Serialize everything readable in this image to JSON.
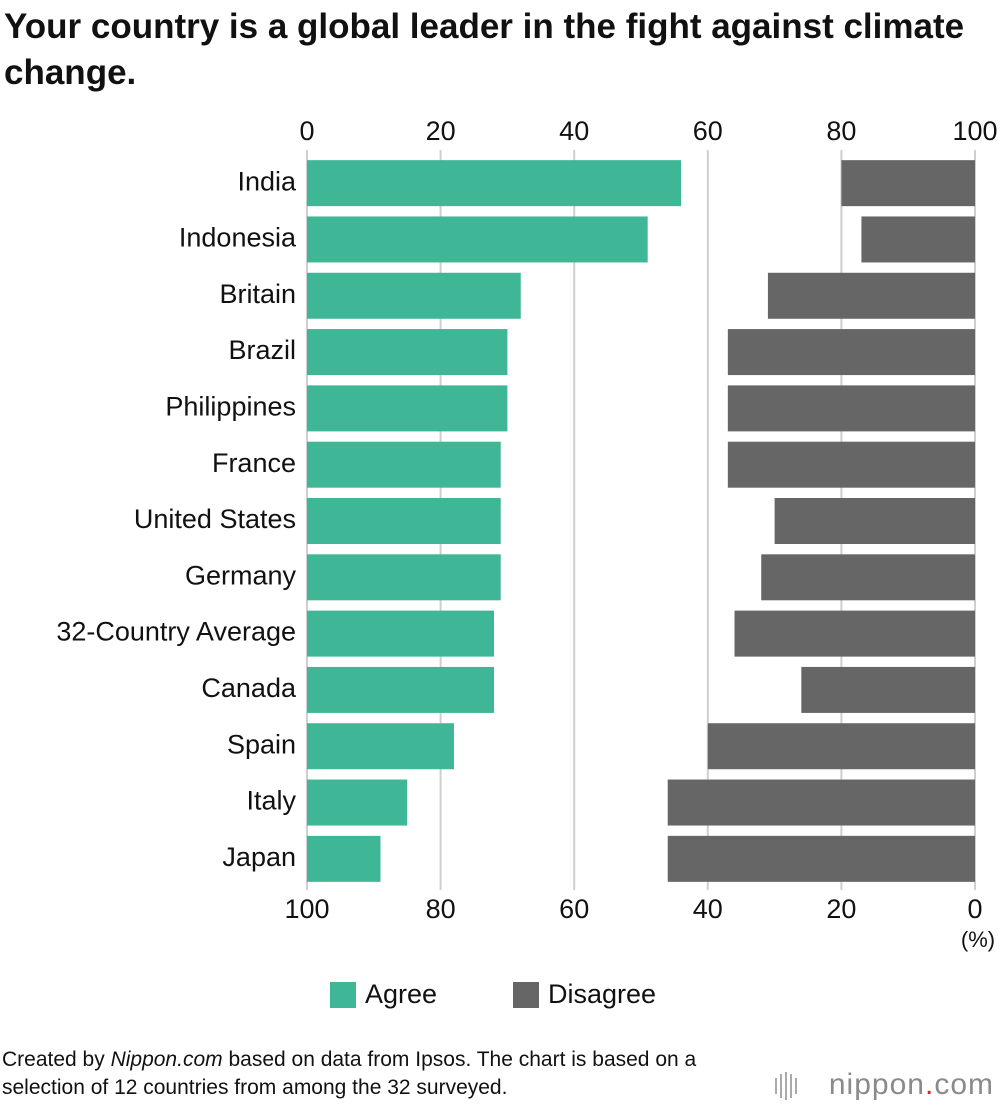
{
  "chart_data": {
    "type": "diverging_bar",
    "title": "Your country is a global leader in the fight against climate change.",
    "categories": [
      "India",
      "Indonesia",
      "Britain",
      "Brazil",
      "Philippines",
      "France",
      "United States",
      "Germany",
      "32-Country Average",
      "Canada",
      "Spain",
      "Italy",
      "Japan"
    ],
    "series": [
      {
        "name": "Agree",
        "color": "#3fb696",
        "axis": "x",
        "values": [
          56,
          51,
          32,
          30,
          30,
          29,
          29,
          29,
          28,
          28,
          22,
          15,
          11
        ]
      },
      {
        "name": "Disagree",
        "color": "#666666",
        "axis": "x2",
        "values": [
          20,
          17,
          31,
          37,
          37,
          37,
          30,
          32,
          36,
          26,
          40,
          46,
          46
        ]
      }
    ],
    "xlim": [
      0,
      100
    ],
    "xticks": [
      0,
      20,
      40,
      60,
      80,
      100
    ],
    "x2lim": [
      100,
      0
    ],
    "x2ticks": [
      100,
      80,
      60,
      40,
      20,
      0
    ],
    "unit_label": "(%)",
    "grid": true,
    "legend": "bottom",
    "note": [
      "Created by ",
      "Nippon.com",
      " based on data from Ipsos. The chart is based on a selection of 12 countries from among the 32 surveyed."
    ],
    "logo": [
      "nippon",
      ".",
      "com"
    ]
  }
}
